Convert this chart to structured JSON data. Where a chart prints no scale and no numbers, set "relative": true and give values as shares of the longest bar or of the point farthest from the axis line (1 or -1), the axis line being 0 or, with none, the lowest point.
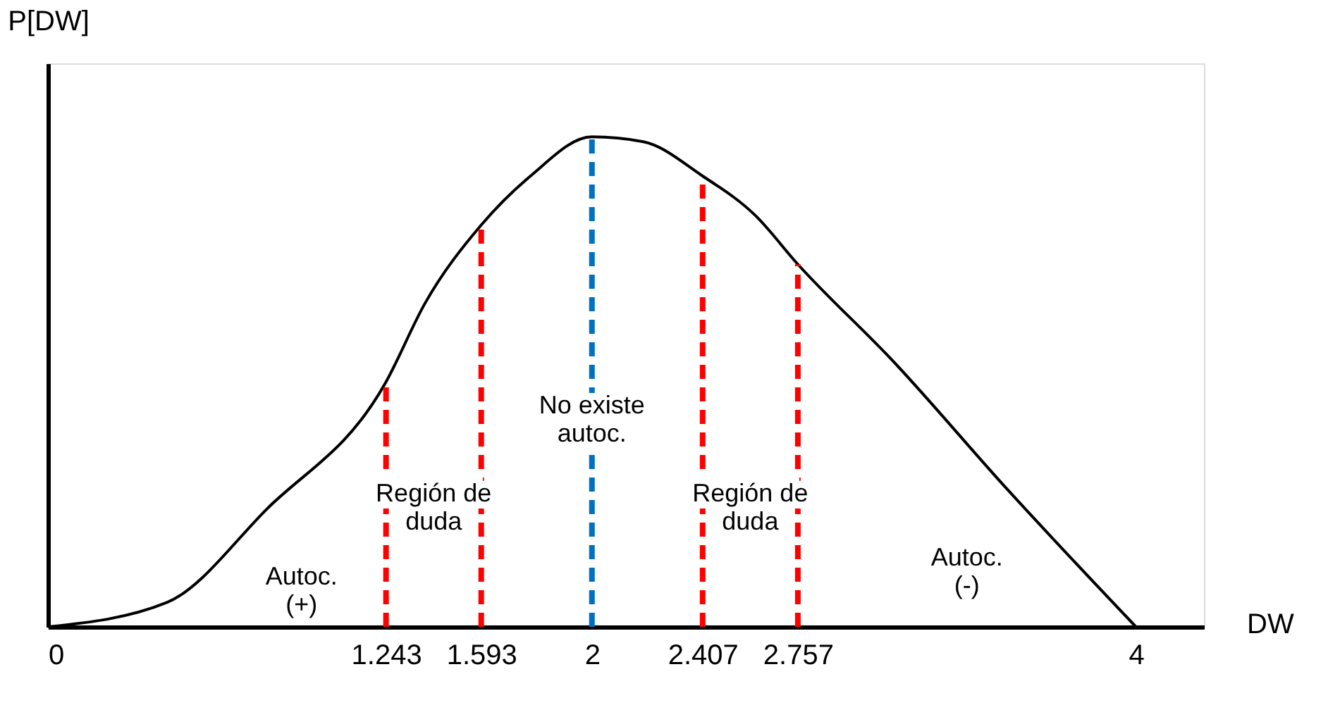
{
  "chart_data": {
    "type": "line",
    "relative": true,
    "xlabel": "DW",
    "ylabel": "P[DW]",
    "x": [
      0,
      0.439,
      0.804,
      1.243,
      1.386,
      1.593,
      1.774,
      2,
      2.189,
      2.407,
      2.6,
      2.757,
      3.111,
      3.528,
      4
    ],
    "series": [
      {
        "color": "#000000",
        "values": [
          0,
          0.05,
          0.24,
          0.5,
          0.66,
          0.82,
          0.92,
          1,
          0.99,
          0.92,
          0.84,
          0.74,
          0.54,
          0.28,
          0
        ]
      }
    ],
    "xlim": [
      0,
      4.25
    ],
    "xticks": [
      0,
      1.243,
      1.593,
      2,
      2.407,
      2.757,
      4
    ],
    "grid": false,
    "marker": "none",
    "line_style": "solid",
    "ref_lines": [
      {
        "axis": "x",
        "value": 1.243,
        "color": "#ff0000",
        "line_style": "dashed"
      },
      {
        "axis": "x",
        "value": 1.593,
        "color": "#ff0000",
        "line_style": "dashed"
      },
      {
        "axis": "x",
        "value": 2,
        "color": "#0070c0",
        "line_style": "dashed"
      },
      {
        "axis": "x",
        "value": 2.407,
        "color": "#ff0000",
        "line_style": "dashed"
      },
      {
        "axis": "x",
        "value": 2.757,
        "color": "#ff0000",
        "line_style": "dashed"
      }
    ],
    "annotations": [
      "Autoc.\n(+)",
      "Región de\nduda",
      {
        "text": "No existe\nautoc.",
        "x": 2,
        "y": 0.45
      },
      "Región de\nduda",
      "Autoc.\n(-)"
    ]
  }
}
